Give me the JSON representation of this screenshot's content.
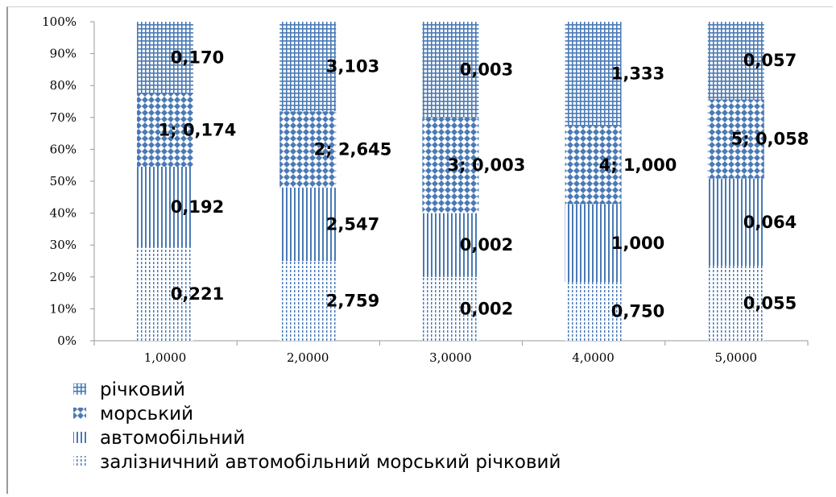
{
  "chart_data": {
    "type": "bar",
    "stacked": "percent",
    "categories": [
      "1,0000",
      "2,0000",
      "3,0000",
      "4,0000",
      "5,0000"
    ],
    "series": [
      {
        "name": "залізничний автомобільний морський річковий",
        "pattern": "dots",
        "values": [
          0.221,
          2.759,
          0.002,
          0.75,
          0.055
        ],
        "labels": [
          "0,221",
          "2,759",
          "0,002",
          "0,750",
          "0,055"
        ]
      },
      {
        "name": "автомобільний",
        "pattern": "vertical-lines",
        "values": [
          0.192,
          2.547,
          0.002,
          1.0,
          0.064
        ],
        "labels": [
          "0,192",
          "2,547",
          "0,002",
          "1,000",
          "0,064"
        ]
      },
      {
        "name": "морський",
        "pattern": "diamonds",
        "values": [
          0.174,
          2.645,
          0.003,
          1.0,
          0.058
        ],
        "labels": [
          "1; 0,174",
          "2; 2,645",
          "3; 0,003",
          "4; 1,000",
          "5; 0,058"
        ]
      },
      {
        "name": "річковий",
        "pattern": "grid",
        "values": [
          0.17,
          3.103,
          0.003,
          1.333,
          0.057
        ],
        "labels": [
          "0,170",
          "3,103",
          "0,003",
          "1,333",
          "0,057"
        ]
      }
    ],
    "y_ticks": [
      "0%",
      "10%",
      "20%",
      "30%",
      "40%",
      "50%",
      "60%",
      "70%",
      "80%",
      "90%",
      "100%"
    ],
    "ylim": [
      0,
      100
    ],
    "legend": "bottom-left",
    "grid": false,
    "color": "#4a7ab5"
  }
}
